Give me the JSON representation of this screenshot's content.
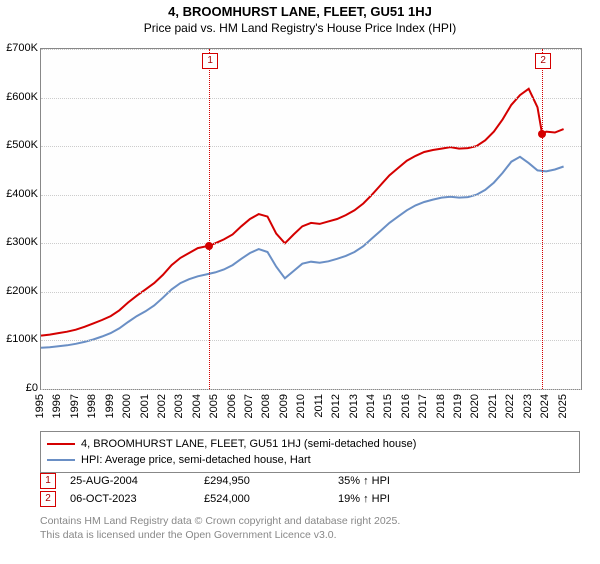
{
  "title": "4, BROOMHURST LANE, FLEET, GU51 1HJ",
  "subtitle": "Price paid vs. HM Land Registry's House Price Index (HPI)",
  "chart": {
    "type": "line",
    "background_color": "#fefefe",
    "border_color": "#888888",
    "grid_color": "#cccccc",
    "xlim": [
      1995,
      2026
    ],
    "ylim": [
      0,
      700000
    ],
    "ytick_step": 100000,
    "y_prefix": "£",
    "y_suffix": "K",
    "yticks": [
      0,
      100000,
      200000,
      300000,
      400000,
      500000,
      600000,
      700000
    ],
    "xticks": [
      1995,
      1996,
      1997,
      1998,
      1999,
      2000,
      2001,
      2002,
      2003,
      2004,
      2005,
      2006,
      2007,
      2008,
      2009,
      2010,
      2011,
      2012,
      2013,
      2014,
      2015,
      2016,
      2017,
      2018,
      2019,
      2020,
      2021,
      2022,
      2023,
      2024,
      2025
    ],
    "tick_fontsize": 11,
    "title_fontsize": 13,
    "line_width": 2,
    "series": [
      {
        "name": "4, BROOMHURST LANE, FLEET, GU51 1HJ (semi-detached house)",
        "color": "#d40000",
        "points": [
          [
            1995,
            110000
          ],
          [
            1995.5,
            112000
          ],
          [
            1996,
            115000
          ],
          [
            1996.5,
            118000
          ],
          [
            1997,
            122000
          ],
          [
            1997.5,
            128000
          ],
          [
            1998,
            135000
          ],
          [
            1998.5,
            142000
          ],
          [
            1999,
            150000
          ],
          [
            1999.5,
            162000
          ],
          [
            2000,
            178000
          ],
          [
            2000.5,
            192000
          ],
          [
            2001,
            205000
          ],
          [
            2001.5,
            218000
          ],
          [
            2002,
            235000
          ],
          [
            2002.5,
            255000
          ],
          [
            2003,
            270000
          ],
          [
            2003.5,
            280000
          ],
          [
            2004,
            290000
          ],
          [
            2004.65,
            294950
          ],
          [
            2005,
            300000
          ],
          [
            2005.5,
            308000
          ],
          [
            2006,
            318000
          ],
          [
            2006.5,
            335000
          ],
          [
            2007,
            350000
          ],
          [
            2007.5,
            360000
          ],
          [
            2008,
            355000
          ],
          [
            2008.5,
            320000
          ],
          [
            2009,
            300000
          ],
          [
            2009.5,
            318000
          ],
          [
            2010,
            335000
          ],
          [
            2010.5,
            342000
          ],
          [
            2011,
            340000
          ],
          [
            2011.5,
            345000
          ],
          [
            2012,
            350000
          ],
          [
            2012.5,
            358000
          ],
          [
            2013,
            368000
          ],
          [
            2013.5,
            382000
          ],
          [
            2014,
            400000
          ],
          [
            2014.5,
            420000
          ],
          [
            2015,
            440000
          ],
          [
            2015.5,
            455000
          ],
          [
            2016,
            470000
          ],
          [
            2016.5,
            480000
          ],
          [
            2017,
            488000
          ],
          [
            2017.5,
            492000
          ],
          [
            2018,
            495000
          ],
          [
            2018.5,
            498000
          ],
          [
            2019,
            495000
          ],
          [
            2019.5,
            496000
          ],
          [
            2020,
            500000
          ],
          [
            2020.5,
            512000
          ],
          [
            2021,
            530000
          ],
          [
            2021.5,
            555000
          ],
          [
            2022,
            585000
          ],
          [
            2022.5,
            605000
          ],
          [
            2023,
            618000
          ],
          [
            2023.5,
            580000
          ],
          [
            2023.77,
            524000
          ],
          [
            2024,
            530000
          ],
          [
            2024.5,
            528000
          ],
          [
            2025,
            535000
          ]
        ]
      },
      {
        "name": "HPI: Average price, semi-detached house, Hart",
        "color": "#6a8fc5",
        "points": [
          [
            1995,
            85000
          ],
          [
            1995.5,
            86000
          ],
          [
            1996,
            88000
          ],
          [
            1996.5,
            90000
          ],
          [
            1997,
            93000
          ],
          [
            1997.5,
            97000
          ],
          [
            1998,
            102000
          ],
          [
            1998.5,
            108000
          ],
          [
            1999,
            115000
          ],
          [
            1999.5,
            125000
          ],
          [
            2000,
            138000
          ],
          [
            2000.5,
            150000
          ],
          [
            2001,
            160000
          ],
          [
            2001.5,
            172000
          ],
          [
            2002,
            188000
          ],
          [
            2002.5,
            205000
          ],
          [
            2003,
            218000
          ],
          [
            2003.5,
            226000
          ],
          [
            2004,
            232000
          ],
          [
            2004.5,
            236000
          ],
          [
            2005,
            240000
          ],
          [
            2005.5,
            246000
          ],
          [
            2006,
            255000
          ],
          [
            2006.5,
            268000
          ],
          [
            2007,
            280000
          ],
          [
            2007.5,
            288000
          ],
          [
            2008,
            282000
          ],
          [
            2008.5,
            252000
          ],
          [
            2009,
            228000
          ],
          [
            2009.5,
            243000
          ],
          [
            2010,
            258000
          ],
          [
            2010.5,
            262000
          ],
          [
            2011,
            260000
          ],
          [
            2011.5,
            263000
          ],
          [
            2012,
            268000
          ],
          [
            2012.5,
            274000
          ],
          [
            2013,
            282000
          ],
          [
            2013.5,
            294000
          ],
          [
            2014,
            310000
          ],
          [
            2014.5,
            326000
          ],
          [
            2015,
            342000
          ],
          [
            2015.5,
            355000
          ],
          [
            2016,
            368000
          ],
          [
            2016.5,
            378000
          ],
          [
            2017,
            385000
          ],
          [
            2017.5,
            390000
          ],
          [
            2018,
            394000
          ],
          [
            2018.5,
            396000
          ],
          [
            2019,
            394000
          ],
          [
            2019.5,
            395000
          ],
          [
            2020,
            400000
          ],
          [
            2020.5,
            410000
          ],
          [
            2021,
            425000
          ],
          [
            2021.5,
            445000
          ],
          [
            2022,
            468000
          ],
          [
            2022.5,
            478000
          ],
          [
            2023,
            465000
          ],
          [
            2023.5,
            450000
          ],
          [
            2024,
            448000
          ],
          [
            2024.5,
            452000
          ],
          [
            2025,
            458000
          ]
        ]
      }
    ],
    "markers": [
      {
        "id": "1",
        "x": 2004.65,
        "y": 294950,
        "color": "#d40000"
      },
      {
        "id": "2",
        "x": 2023.77,
        "y": 524000,
        "color": "#d40000"
      }
    ]
  },
  "legend": {
    "border_color": "#888888",
    "items": [
      {
        "color": "#d40000",
        "label": "4, BROOMHURST LANE, FLEET, GU51 1HJ (semi-detached house)"
      },
      {
        "color": "#6a8fc5",
        "label": "HPI: Average price, semi-detached house, Hart"
      }
    ]
  },
  "annotations": [
    {
      "id": "1",
      "date": "25-AUG-2004",
      "price": "£294,950",
      "vs_hpi": "35% ↑ HPI",
      "border_color": "#d40000"
    },
    {
      "id": "2",
      "date": "06-OCT-2023",
      "price": "£524,000",
      "vs_hpi": "19% ↑ HPI",
      "border_color": "#d40000"
    }
  ],
  "attribution": {
    "line1": "Contains HM Land Registry data © Crown copyright and database right 2025.",
    "line2": "This data is licensed under the Open Government Licence v3.0.",
    "color": "#888888"
  }
}
